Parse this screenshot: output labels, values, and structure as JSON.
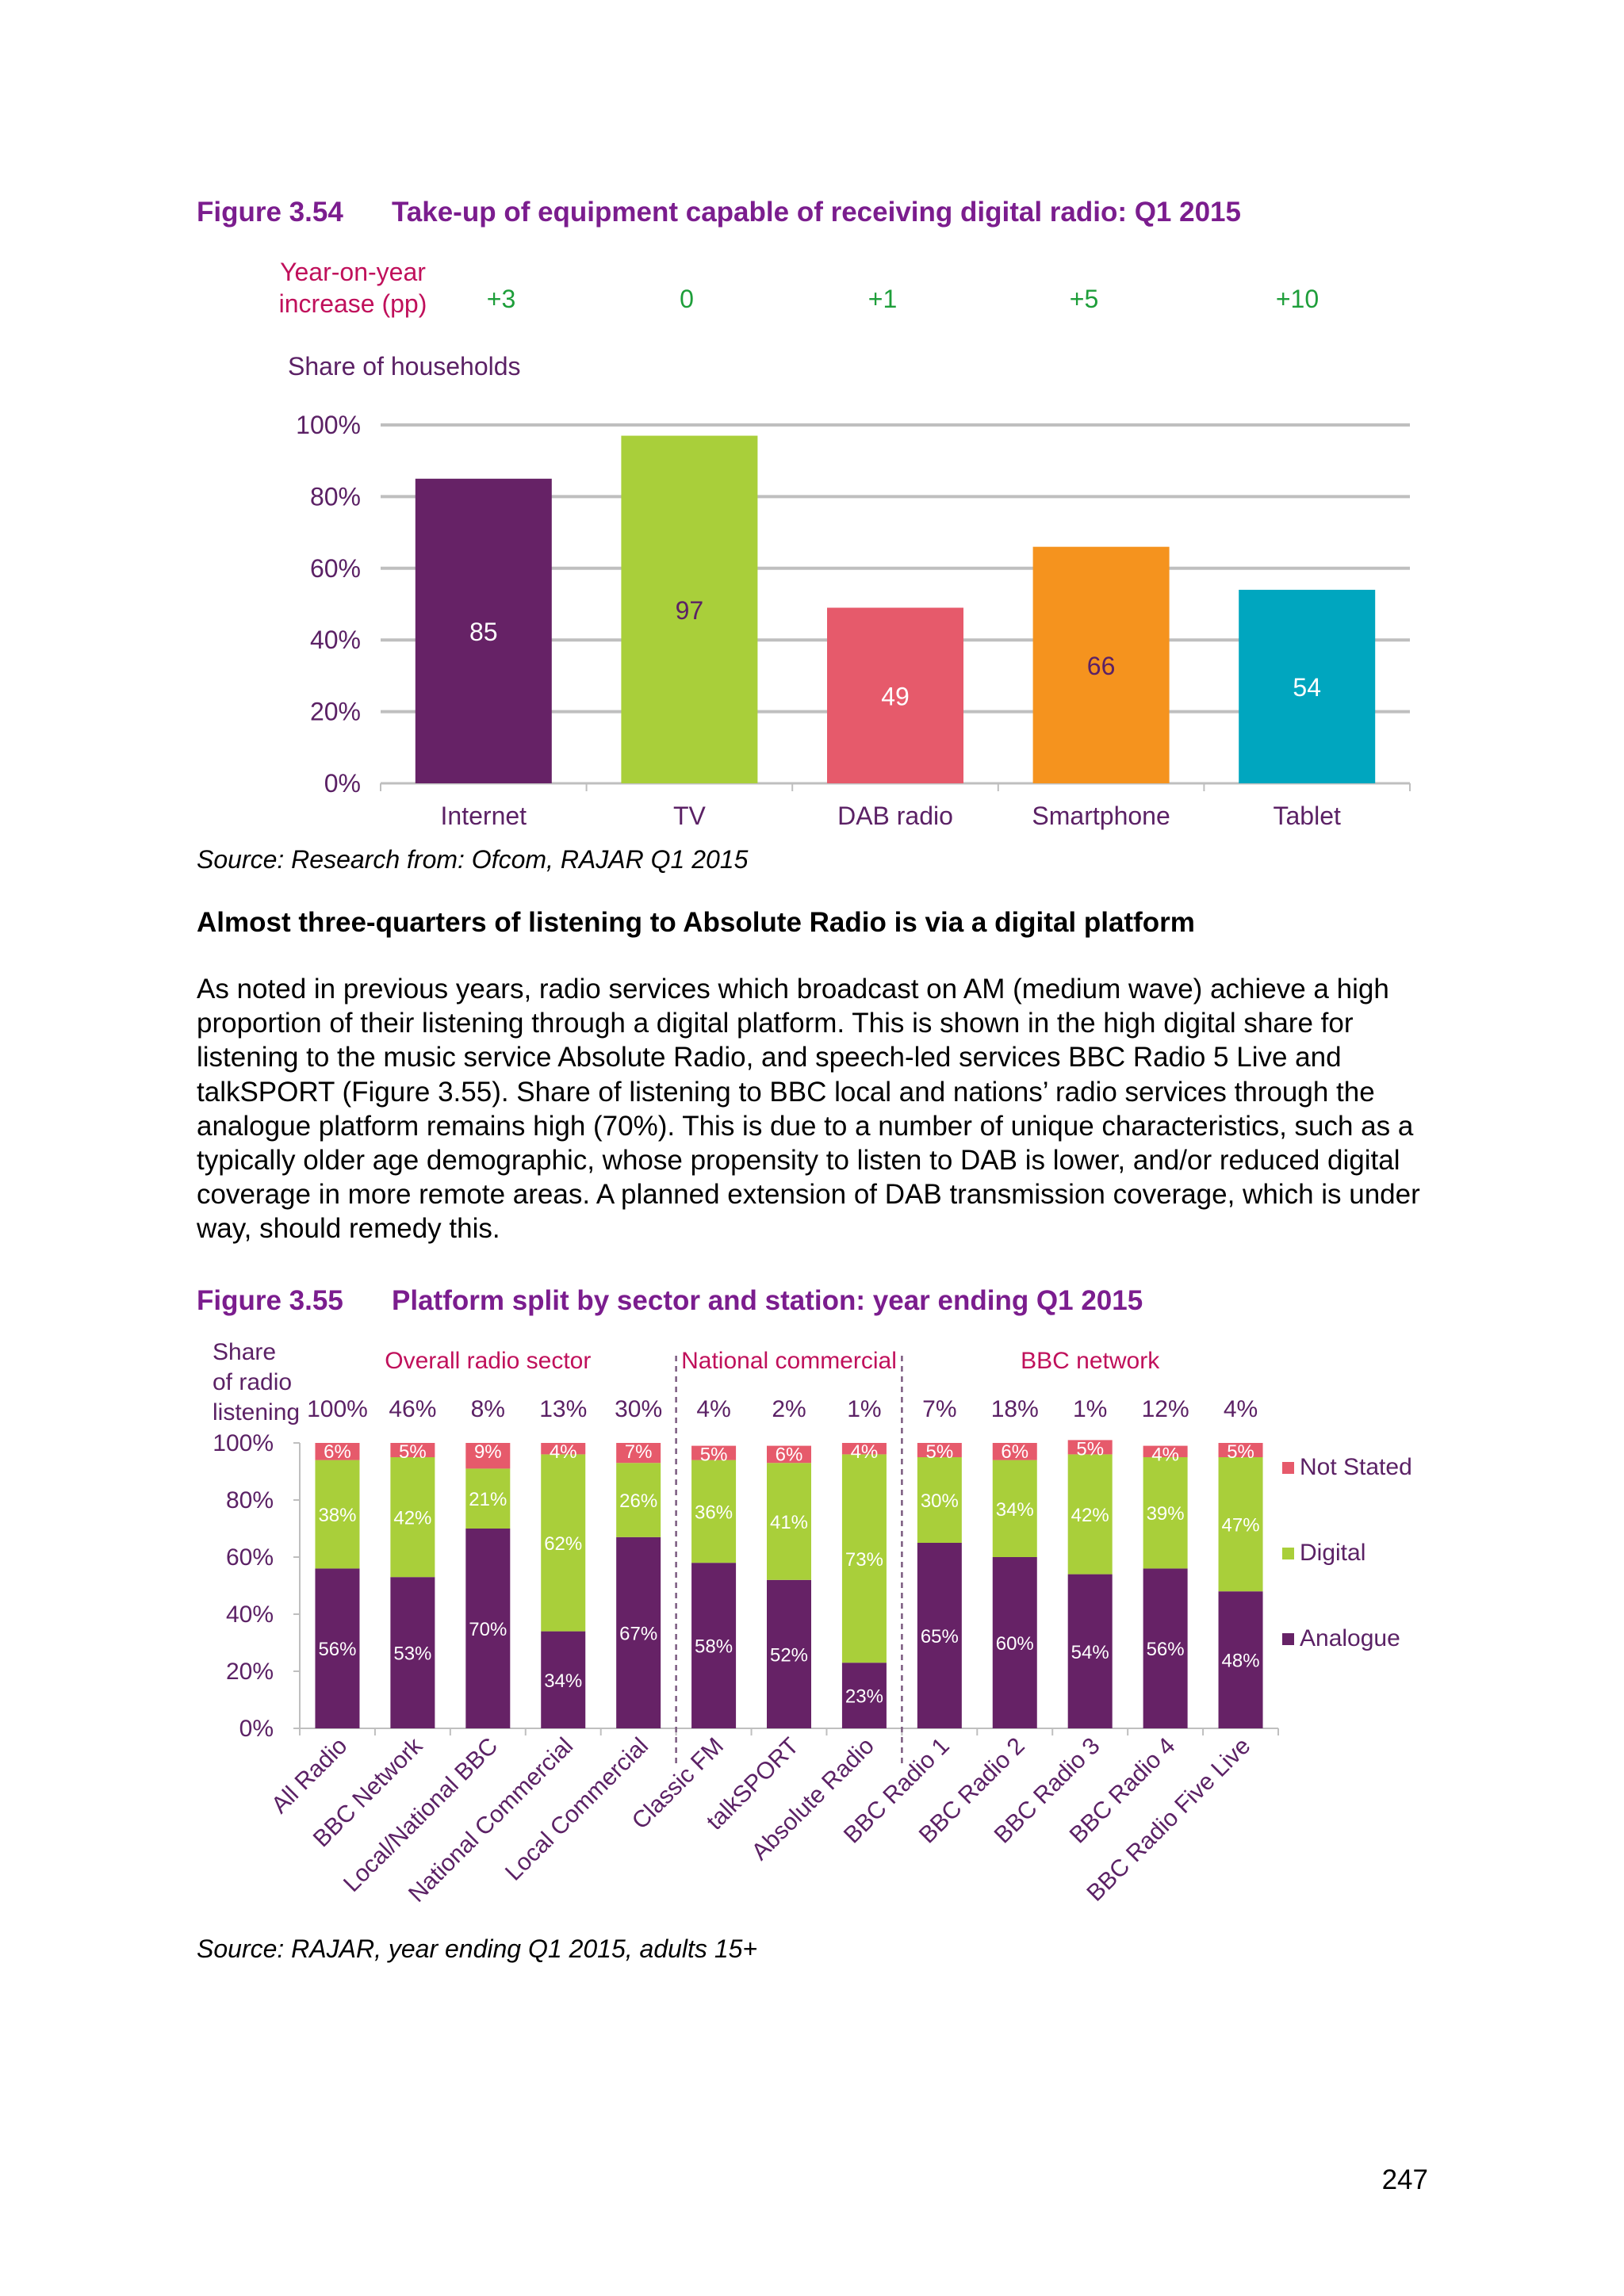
{
  "figure_354": {
    "number": "Figure 3.54",
    "title": "Take-up of equipment capable of receiving digital radio: Q1 2015",
    "source": "Source: Research from: Ofcom, RAJAR Q1 2015"
  },
  "heading": "Almost three-quarters of listening to Absolute Radio is via a digital platform",
  "paragraph": "As noted in previous years, radio services which broadcast on AM (medium wave) achieve a high proportion of their listening through a digital platform. This is shown in the high digital share for listening to the music service Absolute Radio, and speech-led services BBC Radio 5 Live and talkSPORT (Figure 3.55). Share of listening to BBC local and nations’ radio services through the analogue platform remains high (70%). This is due to a number of unique characteristics, such as a typically older age demographic, whose propensity to listen to DAB is lower, and/or reduced digital coverage in more remote areas. A planned extension of DAB transmission coverage, which is under way, should remedy this.",
  "figure_355": {
    "number": "Figure 3.55",
    "title": "Platform split by sector and station: year ending Q1 2015",
    "source": "Source: RAJAR, year ending Q1 2015, adults 15+"
  },
  "page_number": "247",
  "colors": {
    "title_purple": "#7B1D8E",
    "axis_purple": "#5B2165",
    "yoy_label": "#C0105B",
    "yoy_values": "#1E9E3A",
    "internet": "#662266",
    "tv": "#A9CF3A",
    "dab": "#E65A6B",
    "smartphone": "#F5931E",
    "tablet": "#00A6BF",
    "analogue": "#662266",
    "digital": "#A9CF3A",
    "not_stated": "#E65A6B",
    "grid": "#BFBFBF"
  },
  "chart_data": [
    {
      "type": "bar",
      "title": "",
      "ylabel": "Share of households",
      "xlabel": "",
      "categories": [
        "Internet",
        "TV",
        "DAB radio",
        "Smartphone",
        "Tablet"
      ],
      "values": [
        85,
        97,
        49,
        66,
        54
      ],
      "value_labels": [
        "85",
        "97",
        "49",
        "66",
        "54"
      ],
      "ylim": [
        0,
        100
      ],
      "yticks": [
        "0%",
        "20%",
        "40%",
        "60%",
        "80%",
        "100%"
      ],
      "grid": true,
      "yoy_label_lines": [
        "Year-on-year",
        "increase (pp)"
      ],
      "yoy_values": [
        "+3",
        "0",
        "+1",
        "+5",
        "+10"
      ]
    },
    {
      "type": "bar",
      "stacked": true,
      "title": "",
      "ylabel_lines": [
        "Share",
        "of  radio",
        "listening"
      ],
      "xlabel": "",
      "ylim": [
        0,
        100
      ],
      "yticks": [
        "0%",
        "20%",
        "40%",
        "60%",
        "80%",
        "100%"
      ],
      "grid": false,
      "legend_position": "right",
      "categories": [
        "All Radio",
        "BBC Network",
        "Local/National BBC",
        "National Commercial",
        "Local Commercial",
        "Classic FM",
        "talkSPORT",
        "Absolute Radio",
        "BBC Radio 1",
        "BBC Radio 2",
        "BBC Radio 3",
        "BBC Radio 4",
        "BBC Radio Five Live"
      ],
      "share_of_listening": [
        "100%",
        "46%",
        "8%",
        "13%",
        "30%",
        "4%",
        "2%",
        "1%",
        "7%",
        "18%",
        "1%",
        "12%",
        "4%"
      ],
      "groups": [
        {
          "label": "Overall radio sector",
          "start": 0,
          "end": 4
        },
        {
          "label": "National commercial",
          "start": 5,
          "end": 7
        },
        {
          "label": "BBC network",
          "start": 8,
          "end": 12
        }
      ],
      "series": [
        {
          "name": "Analogue",
          "values": [
            56,
            53,
            70,
            34,
            67,
            58,
            52,
            23,
            65,
            60,
            54,
            56,
            48
          ]
        },
        {
          "name": "Digital",
          "values": [
            38,
            42,
            21,
            62,
            26,
            36,
            41,
            73,
            30,
            34,
            42,
            39,
            47
          ]
        },
        {
          "name": "Not Stated",
          "values": [
            6,
            5,
            9,
            4,
            7,
            5,
            6,
            4,
            5,
            6,
            5,
            4,
            5
          ]
        }
      ]
    }
  ]
}
